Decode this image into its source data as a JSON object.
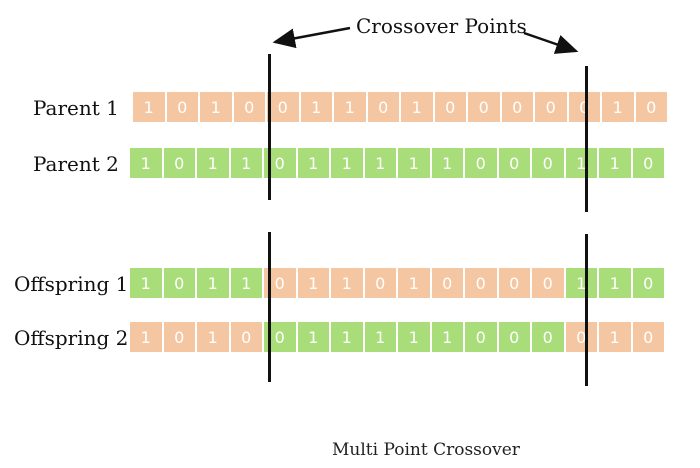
{
  "title": "Crossover Points",
  "caption": "Multi Point Crossover",
  "colors": {
    "orange": "#f5c6a2",
    "green": "#a9dd7a",
    "line": "#111111"
  },
  "rows": [
    {
      "label": "Parent 1",
      "bits": [
        "1",
        "0",
        "1",
        "0",
        "0",
        "1",
        "1",
        "0",
        "1",
        "0",
        "0",
        "0",
        "0",
        "0",
        "1",
        "0"
      ],
      "colors": [
        "orange",
        "orange",
        "orange",
        "orange",
        "orange",
        "orange",
        "orange",
        "orange",
        "orange",
        "orange",
        "orange",
        "orange",
        "orange",
        "orange",
        "orange",
        "orange"
      ]
    },
    {
      "label": "Parent 2",
      "bits": [
        "1",
        "0",
        "1",
        "1",
        "0",
        "1",
        "1",
        "1",
        "1",
        "1",
        "0",
        "0",
        "0",
        "1",
        "1",
        "0"
      ],
      "colors": [
        "green",
        "green",
        "green",
        "green",
        "green",
        "green",
        "green",
        "green",
        "green",
        "green",
        "green",
        "green",
        "green",
        "green",
        "green",
        "green"
      ]
    },
    {
      "label": "Offspring 1",
      "bits": [
        "1",
        "0",
        "1",
        "1",
        "0",
        "1",
        "1",
        "0",
        "1",
        "0",
        "0",
        "0",
        "0",
        "1",
        "1",
        "0"
      ],
      "colors": [
        "green",
        "green",
        "green",
        "green",
        "orange",
        "orange",
        "orange",
        "orange",
        "orange",
        "orange",
        "orange",
        "orange",
        "orange",
        "green",
        "green",
        "green"
      ]
    },
    {
      "label": "Offspring 2",
      "bits": [
        "1",
        "0",
        "1",
        "0",
        "0",
        "1",
        "1",
        "1",
        "1",
        "1",
        "0",
        "0",
        "0",
        "0",
        "1",
        "0"
      ],
      "colors": [
        "orange",
        "orange",
        "orange",
        "orange",
        "green",
        "green",
        "green",
        "green",
        "green",
        "green",
        "green",
        "green",
        "green",
        "orange",
        "orange",
        "orange"
      ]
    }
  ]
}
